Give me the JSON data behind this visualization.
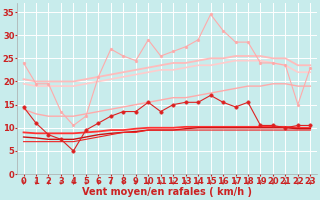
{
  "x": [
    0,
    1,
    2,
    3,
    4,
    5,
    6,
    7,
    8,
    9,
    10,
    11,
    12,
    13,
    14,
    15,
    16,
    17,
    18,
    19,
    20,
    21,
    22,
    23
  ],
  "background_color": "#c8ecec",
  "grid_color": "#ffffff",
  "xlabel": "Vent moyen/en rafales ( km/h )",
  "ylim": [
    0,
    37
  ],
  "xlim": [
    -0.5,
    23.5
  ],
  "yticks": [
    0,
    5,
    10,
    15,
    20,
    25,
    30,
    35
  ],
  "xticks": [
    0,
    1,
    2,
    3,
    4,
    5,
    6,
    7,
    8,
    9,
    10,
    11,
    12,
    13,
    14,
    15,
    16,
    17,
    18,
    19,
    20,
    21,
    22,
    23
  ],
  "series": [
    {
      "name": "upper_pink_jagged",
      "color": "#ffaaaa",
      "linewidth": 0.8,
      "marker": "o",
      "markersize": 2.0,
      "values": [
        24,
        19.5,
        19.5,
        13.5,
        10.5,
        12.5,
        21,
        27,
        25.5,
        24.5,
        29,
        25.5,
        26.5,
        27.5,
        29,
        34.5,
        31,
        28.5,
        28.5,
        24,
        24,
        23.5,
        15,
        23
      ]
    },
    {
      "name": "upper_pink_smooth_top",
      "color": "#ffbbbb",
      "linewidth": 1.3,
      "marker": null,
      "markersize": 0,
      "values": [
        20.5,
        20.0,
        20.0,
        20.0,
        20.0,
        20.5,
        21.0,
        21.5,
        22.0,
        22.5,
        23.0,
        23.5,
        24.0,
        24.0,
        24.5,
        25.0,
        25.0,
        25.5,
        25.5,
        25.5,
        25.0,
        25.0,
        23.5,
        23.5
      ]
    },
    {
      "name": "upper_pink_smooth_bot",
      "color": "#ffcccc",
      "linewidth": 1.2,
      "marker": null,
      "markersize": 0,
      "values": [
        19.5,
        19.0,
        19.0,
        19.0,
        19.0,
        19.5,
        20.0,
        20.5,
        21.0,
        21.5,
        22.0,
        22.5,
        22.5,
        23.0,
        23.5,
        23.5,
        24.0,
        24.5,
        24.5,
        24.5,
        24.0,
        23.5,
        22.0,
        22.0
      ]
    },
    {
      "name": "lower_pink_smooth",
      "color": "#ffaaaa",
      "linewidth": 1.0,
      "marker": null,
      "markersize": 0,
      "values": [
        14.0,
        13.0,
        12.5,
        12.5,
        12.5,
        13.0,
        13.5,
        14.0,
        14.5,
        15.0,
        15.5,
        16.0,
        16.5,
        16.5,
        17.0,
        17.5,
        18.0,
        18.5,
        19.0,
        19.0,
        19.5,
        19.5,
        19.0,
        19.0
      ]
    },
    {
      "name": "mid_red_jagged",
      "color": "#dd2222",
      "linewidth": 0.8,
      "marker": "o",
      "markersize": 2.5,
      "values": [
        14.5,
        11.0,
        8.5,
        7.5,
        5.0,
        9.5,
        11.0,
        12.5,
        13.5,
        13.5,
        15.5,
        13.5,
        15.0,
        15.5,
        15.5,
        17.0,
        15.5,
        14.5,
        15.5,
        10.5,
        10.5,
        10.0,
        10.5,
        10.5
      ]
    },
    {
      "name": "lower_red_smooth1",
      "color": "#ff3333",
      "linewidth": 1.3,
      "marker": null,
      "markersize": 0,
      "values": [
        9.0,
        8.8,
        8.8,
        8.8,
        8.8,
        9.0,
        9.2,
        9.5,
        9.5,
        9.8,
        10.0,
        10.0,
        10.0,
        10.2,
        10.2,
        10.2,
        10.2,
        10.2,
        10.2,
        10.2,
        10.2,
        10.2,
        10.0,
        10.0
      ]
    },
    {
      "name": "lower_red_smooth2",
      "color": "#cc1111",
      "linewidth": 1.0,
      "marker": null,
      "markersize": 0,
      "values": [
        8.0,
        7.8,
        7.5,
        7.5,
        7.5,
        8.0,
        8.5,
        8.8,
        9.0,
        9.2,
        9.5,
        9.5,
        9.5,
        9.8,
        10.0,
        10.0,
        10.0,
        10.0,
        10.0,
        10.0,
        10.0,
        10.0,
        9.8,
        9.8
      ]
    },
    {
      "name": "bottom_red_line",
      "color": "#ee2222",
      "linewidth": 0.8,
      "marker": null,
      "markersize": 0,
      "values": [
        7.0,
        7.0,
        7.0,
        7.0,
        7.0,
        7.5,
        8.0,
        8.5,
        9.0,
        9.0,
        9.5,
        9.5,
        9.5,
        9.5,
        9.5,
        9.5,
        9.5,
        9.5,
        9.5,
        9.5,
        9.5,
        9.5,
        9.5,
        9.5
      ]
    }
  ],
  "arrow_color": "#cc2222",
  "label_fontsize": 7,
  "tick_fontsize": 6
}
